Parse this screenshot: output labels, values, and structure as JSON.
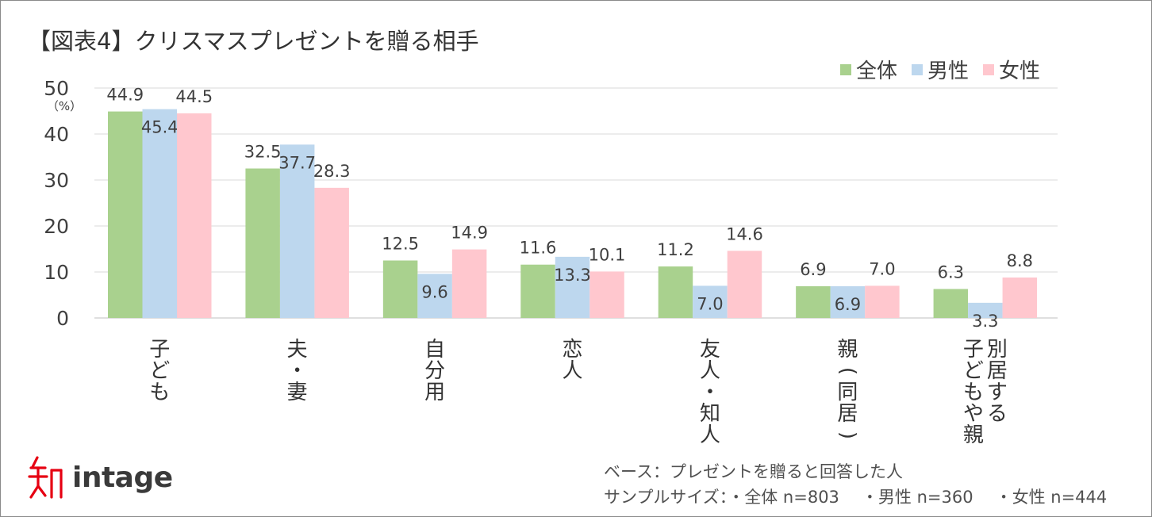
{
  "title": "【図表4】クリスマスプレゼントを贈る相手",
  "chart_data": {
    "type": "bar",
    "title": "【図表4】クリスマスプレゼントを贈る相手",
    "ylabel": "（%）",
    "ylim": [
      0,
      50
    ],
    "yticks": [
      0,
      10,
      20,
      30,
      40,
      50
    ],
    "grid": true,
    "legend_position": "top-right",
    "categories": [
      "子ども",
      "夫・妻",
      "自分用",
      "恋人",
      "友人・知人",
      "親(同居)",
      "別居する子どもや親"
    ],
    "category_lines": [
      [
        "子ども"
      ],
      [
        "夫・妻"
      ],
      [
        "自分用"
      ],
      [
        "恋人"
      ],
      [
        "友人・知人"
      ],
      [
        "親(同居)"
      ],
      [
        "別居する",
        "子どもや親"
      ]
    ],
    "series": [
      {
        "name": "全体",
        "color": "#a9d18e",
        "values": [
          44.9,
          32.5,
          12.5,
          11.6,
          11.2,
          6.9,
          6.3
        ],
        "labels": [
          "44.9",
          "32.5",
          "12.5",
          "11.6",
          "11.2",
          "6.9",
          "6.3"
        ],
        "label_pos": "above"
      },
      {
        "name": "男性",
        "color": "#bdd7ee",
        "values": [
          45.4,
          37.7,
          9.6,
          13.3,
          7.0,
          6.9,
          3.3
        ],
        "labels": [
          "45.4",
          "37.7",
          "9.6",
          "13.3",
          "7.0",
          "6.9",
          "3.3"
        ],
        "label_pos": "inside"
      },
      {
        "name": "女性",
        "color": "#ffc7ce",
        "values": [
          44.5,
          28.3,
          14.9,
          10.1,
          14.6,
          7.0,
          8.8
        ],
        "labels": [
          "44.5",
          "28.3",
          "14.9",
          "10.1",
          "14.6",
          "7.0",
          "8.8"
        ],
        "label_pos": "above"
      }
    ]
  },
  "footer": {
    "base": "ベース：プレゼントを贈ると回答した人",
    "sample_prefix": "サンプルサイズ：",
    "samples": [
      "・全体 n=803",
      "・男性 n=360",
      "・女性 n=444"
    ]
  },
  "logo": {
    "text": "intage",
    "icon": "intage-kanji-logo-icon"
  }
}
